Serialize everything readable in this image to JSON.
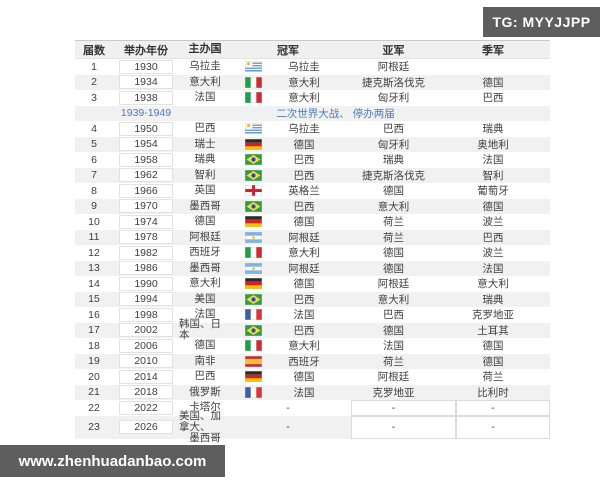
{
  "badges": {
    "tg": "TG: MYYJJPP",
    "site": "www.zhenhuadanbao.com"
  },
  "colors": {
    "badge_bg": "#5e5e5e",
    "note_blue": "#4a7cbd",
    "row_shade": "#f1f1f1",
    "text": "#3e3e3e"
  },
  "chart_data": {
    "type": "table",
    "columns": [
      "届数",
      "举办年份",
      "主办国",
      "冠军",
      "亚军",
      "季军"
    ],
    "rows": [
      {
        "no": "1",
        "year": "1930",
        "host": "乌拉圭",
        "flag": "uruguay",
        "champion": "乌拉圭",
        "runner_up": "阿根廷",
        "third": ""
      },
      {
        "no": "2",
        "year": "1934",
        "host": "意大利",
        "flag": "italy",
        "champion": "意大利",
        "runner_up": "捷克斯洛伐克",
        "third": "德国"
      },
      {
        "no": "3",
        "year": "1938",
        "host": "法国",
        "flag": "italy",
        "champion": "意大利",
        "runner_up": "匈牙利",
        "third": "巴西"
      },
      {
        "note": true,
        "year_range": "1939-1949",
        "note_text": "二次世界大战、 停办两届"
      },
      {
        "no": "4",
        "year": "1950",
        "host": "巴西",
        "flag": "uruguay",
        "champion": "乌拉圭",
        "runner_up": "巴西",
        "third": "瑞典"
      },
      {
        "no": "5",
        "year": "1954",
        "host": "瑞士",
        "flag": "germany",
        "champion": "德国",
        "runner_up": "匈牙利",
        "third": "奥地利"
      },
      {
        "no": "6",
        "year": "1958",
        "host": "瑞典",
        "flag": "brazil",
        "champion": "巴西",
        "runner_up": "瑞典",
        "third": "法国"
      },
      {
        "no": "7",
        "year": "1962",
        "host": "智利",
        "flag": "brazil",
        "champion": "巴西",
        "runner_up": "捷克斯洛伐克",
        "third": "智利"
      },
      {
        "no": "8",
        "year": "1966",
        "host": "英国",
        "flag": "england",
        "champion": "英格兰",
        "runner_up": "德国",
        "third": "葡萄牙"
      },
      {
        "no": "9",
        "year": "1970",
        "host": "墨西哥",
        "flag": "brazil",
        "champion": "巴西",
        "runner_up": "意大利",
        "third": "德国"
      },
      {
        "no": "10",
        "year": "1974",
        "host": "德国",
        "flag": "germany",
        "champion": "德国",
        "runner_up": "荷兰",
        "third": "波兰"
      },
      {
        "no": "11",
        "year": "1978",
        "host": "阿根廷",
        "flag": "argentina",
        "champion": "阿根廷",
        "runner_up": "荷兰",
        "third": "巴西"
      },
      {
        "no": "12",
        "year": "1982",
        "host": "西班牙",
        "flag": "italy",
        "champion": "意大利",
        "runner_up": "德国",
        "third": "波兰"
      },
      {
        "no": "13",
        "year": "1986",
        "host": "墨西哥",
        "flag": "argentina",
        "champion": "阿根廷",
        "runner_up": "德国",
        "third": "法国"
      },
      {
        "no": "14",
        "year": "1990",
        "host": "意大利",
        "flag": "germany",
        "champion": "德国",
        "runner_up": "阿根廷",
        "third": "意大利"
      },
      {
        "no": "15",
        "year": "1994",
        "host": "美国",
        "flag": "brazil",
        "champion": "巴西",
        "runner_up": "意大利",
        "third": "瑞典"
      },
      {
        "no": "16",
        "year": "1998",
        "host": "法国",
        "flag": "france",
        "champion": "法国",
        "runner_up": "巴西",
        "third": "克罗地亚"
      },
      {
        "no": "17",
        "year": "2002",
        "host": "韩国、日本",
        "flag": "brazil",
        "champion": "巴西",
        "runner_up": "德国",
        "third": "土耳其"
      },
      {
        "no": "18",
        "year": "2006",
        "host": "德国",
        "flag": "italy",
        "champion": "意大利",
        "runner_up": "法国",
        "third": "德国"
      },
      {
        "no": "19",
        "year": "2010",
        "host": "南非",
        "flag": "spain",
        "champion": "西班牙",
        "runner_up": "荷兰",
        "third": "德国"
      },
      {
        "no": "20",
        "year": "2014",
        "host": "巴西",
        "flag": "germany",
        "champion": "德国",
        "runner_up": "阿根廷",
        "third": "荷兰"
      },
      {
        "no": "21",
        "year": "2018",
        "host": "俄罗斯",
        "flag": "france",
        "champion": "法国",
        "runner_up": "克罗地亚",
        "third": "比利时"
      },
      {
        "no": "22",
        "year": "2022",
        "host": "卡塔尔",
        "champion": "-",
        "runner_up": "-",
        "third": "-"
      },
      {
        "no": "23",
        "year": "2026",
        "host": "美国、加拿大、",
        "host2": "墨西哥",
        "champion": "-",
        "runner_up": "-",
        "third": "-",
        "tall": true
      }
    ]
  }
}
